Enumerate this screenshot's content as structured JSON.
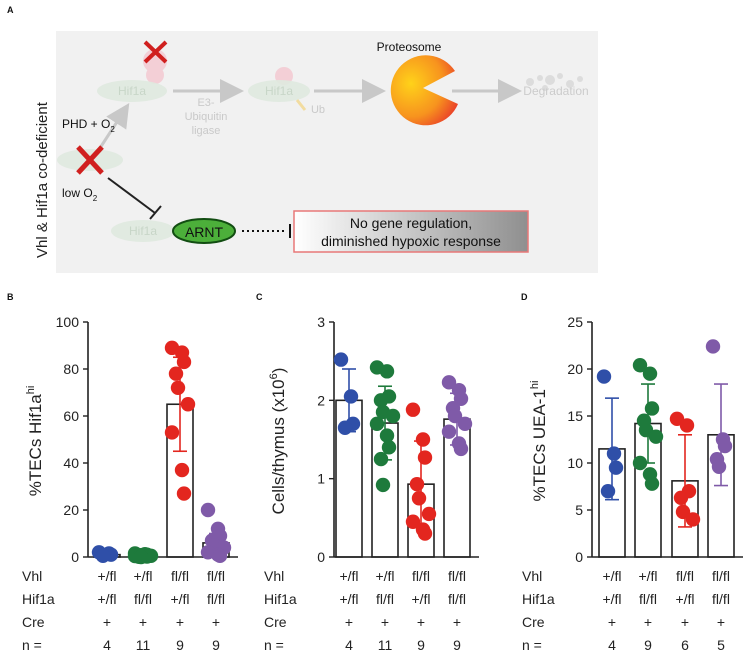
{
  "panel_a": {
    "letter": "A",
    "side_label": "Vhl & Hif1a co-deficient",
    "proteasome_label": "Proteosome",
    "hif1a_labels": [
      "Hif1a",
      "Hif1a",
      "Hif1a"
    ],
    "e3_label_lines": [
      "E3-",
      "Ubiquitin",
      "ligase"
    ],
    "ub_label": "Ub",
    "degradation_label": "Degradation",
    "phd_label": "PHD + O",
    "phd_sub": "2",
    "lowo2_label": "low O",
    "lowo2_sub": "2",
    "arnt_label": "ARNT",
    "result_lines": [
      "No gene regulation,",
      "diminished hypoxic response"
    ],
    "colors": {
      "arnt_fill": "#4caf3a",
      "cross": "#d0201f",
      "box_border": "#e87878"
    }
  },
  "chart_data": [
    {
      "panel": "B",
      "type": "bar",
      "ylabel": "%TECs Hif1a",
      "ylabel_sup": "hi",
      "ylim": [
        0,
        100
      ],
      "yticks": [
        0,
        20,
        40,
        60,
        80,
        100
      ],
      "ytick_labels": [
        "0",
        "20",
        "40",
        "60",
        "80",
        "100"
      ],
      "categories": [
        "Vhl +/fl Hif1a +/fl",
        "Vhl +/fl Hif1a fl/fl",
        "Vhl fl/fl Hif1a +/fl",
        "Vhl fl/fl Hif1a fl/fl"
      ],
      "means": [
        1,
        0.5,
        65,
        6
      ],
      "errors": [
        0.5,
        0.5,
        20,
        4
      ],
      "colors": [
        "#2f4fa8",
        "#1e7a3c",
        "#e3261f",
        "#7f5aa8"
      ],
      "points": [
        [
          2,
          1.5,
          1,
          0.5
        ],
        [
          1.5,
          1.2,
          1,
          0.8,
          0.6,
          0.5,
          0.4,
          0.3,
          0.2,
          0.1,
          0
        ],
        [
          89,
          87,
          83,
          78,
          72,
          65,
          53,
          37,
          27
        ],
        [
          20,
          12,
          9,
          7,
          5,
          4,
          2,
          1,
          0.5
        ]
      ],
      "groups": {
        "Vhl": [
          "+/fl",
          "+/fl",
          "fl/fl",
          "fl/fl"
        ],
        "Hif1a": [
          "+/fl",
          "fl/fl",
          "+/fl",
          "fl/fl"
        ],
        "Cre": [
          "+",
          "+",
          "+",
          "+"
        ],
        "n": [
          "4",
          "11",
          "9",
          "9"
        ]
      }
    },
    {
      "panel": "C",
      "type": "bar",
      "ylabel": "Cells/thymus (x10",
      "ylabel_sup": "6",
      "ylabel_end": ")",
      "ylim": [
        0,
        3
      ],
      "yticks": [
        0,
        1,
        2,
        3
      ],
      "ytick_labels": [
        "0",
        "1",
        "2",
        "3"
      ],
      "categories": [
        "Vhl +/fl Hif1a +/fl",
        "Vhl +/fl Hif1a fl/fl",
        "Vhl fl/fl Hif1a +/fl",
        "Vhl fl/fl Hif1a fl/fl"
      ],
      "means": [
        2.0,
        1.71,
        0.93,
        1.76
      ],
      "errors": [
        0.4,
        0.47,
        0.55,
        0.33
      ],
      "colors": [
        "#2f4fa8",
        "#1e7a3c",
        "#e3261f",
        "#7f5aa8"
      ],
      "points": [
        [
          2.52,
          2.05,
          1.7,
          1.65
        ],
        [
          2.42,
          2.37,
          2.05,
          2.0,
          1.85,
          1.8,
          1.7,
          1.55,
          1.4,
          1.25,
          0.92
        ],
        [
          1.88,
          1.5,
          1.27,
          0.93,
          0.75,
          0.55,
          0.45,
          0.35,
          0.3
        ],
        [
          2.23,
          2.13,
          2.02,
          1.9,
          1.8,
          1.7,
          1.6,
          1.45,
          1.38
        ]
      ],
      "groups": {
        "Vhl": [
          "+/fl",
          "+/fl",
          "fl/fl",
          "fl/fl"
        ],
        "Hif1a": [
          "+/fl",
          "fl/fl",
          "+/fl",
          "fl/fl"
        ],
        "Cre": [
          "+",
          "+",
          "+",
          "+"
        ],
        "n": [
          "4",
          "11",
          "9",
          "9"
        ]
      }
    },
    {
      "panel": "D",
      "type": "bar",
      "ylabel": "%TECs UEA-1",
      "ylabel_sup": "hi",
      "ylim": [
        0,
        25
      ],
      "yticks": [
        0,
        5,
        10,
        15,
        20,
        25
      ],
      "ytick_labels": [
        "0",
        "5",
        "10",
        "15",
        "20",
        "25"
      ],
      "categories": [
        "Vhl +/fl Hif1a +/fl",
        "Vhl +/fl Hif1a fl/fl",
        "Vhl fl/fl Hif1a +/fl",
        "Vhl fl/fl Hif1a fl/fl"
      ],
      "means": [
        11.5,
        14.2,
        8.1,
        13.0
      ],
      "errors": [
        5.4,
        4.2,
        4.9,
        5.4
      ],
      "colors": [
        "#2f4fa8",
        "#1e7a3c",
        "#e3261f",
        "#7f5aa8"
      ],
      "points": [
        [
          19.2,
          11,
          9.5,
          7
        ],
        [
          20.4,
          19.5,
          15.8,
          14.5,
          13.5,
          12.8,
          10,
          8.8,
          7.8
        ],
        [
          14.7,
          14,
          7,
          6.3,
          4.8,
          4
        ],
        [
          22.4,
          12.5,
          11.8,
          10.4,
          9.6
        ]
      ],
      "groups": {
        "Vhl": [
          "+/fl",
          "+/fl",
          "fl/fl",
          "fl/fl"
        ],
        "Hif1a": [
          "+/fl",
          "fl/fl",
          "+/fl",
          "fl/fl"
        ],
        "Cre": [
          "+",
          "+",
          "+",
          "+"
        ],
        "n": [
          "4",
          "9",
          "6",
          "5"
        ]
      }
    }
  ],
  "row_labels": [
    "Vhl",
    "Hif1a",
    "Cre",
    "n ="
  ],
  "panel_letters": [
    "B",
    "C",
    "D"
  ]
}
